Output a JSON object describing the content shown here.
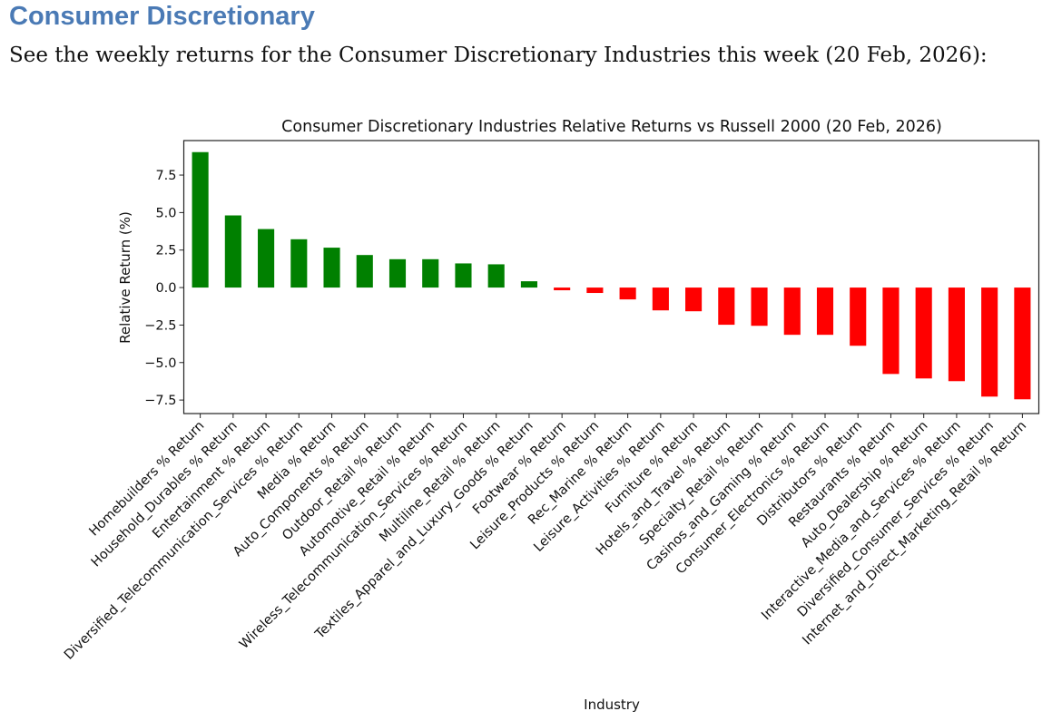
{
  "heading": "Consumer Discretionary",
  "intro": "See the weekly returns for the Consumer Discretionary Industries this week (20 Feb, 2026):",
  "colors": {
    "positive": "#008000",
    "negative": "#ff0000",
    "heading": "#4a7ab5"
  },
  "chart_data": {
    "type": "bar",
    "title": "Consumer Discretionary Industries Relative Returns vs Russell 2000 (20 Feb, 2026)",
    "xlabel": "Industry",
    "ylabel": "Relative Return (%)",
    "ylim": [
      -8.4,
      9.8
    ],
    "yticks": [
      7.5,
      5.0,
      2.5,
      0.0,
      -2.5,
      -5.0,
      -7.5
    ],
    "ytick_labels": [
      "7.5",
      "5.0",
      "2.5",
      "0.0",
      "−2.5",
      "−5.0",
      "−7.5"
    ],
    "grid": false,
    "categories": [
      "Homebuilders % Return",
      "Household_Durables % Return",
      "Entertainment % Return",
      "Diversified_Telecommunication_Services % Return",
      "Media % Return",
      "Auto_Components % Return",
      "Outdoor_Retail % Return",
      "Automotive_Retail % Return",
      "Wireless_Telecommunication_Services % Return",
      "Multiline_Retail % Return",
      "Textiles_Apparel_and_Luxury_Goods % Return",
      "Footwear % Return",
      "Leisure_Products % Return",
      "Rec_Marine % Return",
      "Leisure_Activities % Return",
      "Furniture % Return",
      "Hotels_and_Travel % Return",
      "Specialty_Retail % Return",
      "Casinos_and_Gaming % Return",
      "Consumer_Electronics % Return",
      "Distributors % Return",
      "Restaurants % Return",
      "Auto_Dealership % Return",
      "Interactive_Media_and_Services % Return",
      "Diversified_Consumer_Services % Return",
      "Internet_and_Direct_Marketing_Retail % Return"
    ],
    "values": [
      9.03,
      4.81,
      3.9,
      3.22,
      2.66,
      2.17,
      1.89,
      1.89,
      1.61,
      1.55,
      0.42,
      -0.18,
      -0.36,
      -0.79,
      -1.52,
      -1.58,
      -2.48,
      -2.55,
      -3.15,
      -3.15,
      -3.88,
      -5.76,
      -6.06,
      -6.24,
      -7.27,
      -7.45
    ]
  }
}
